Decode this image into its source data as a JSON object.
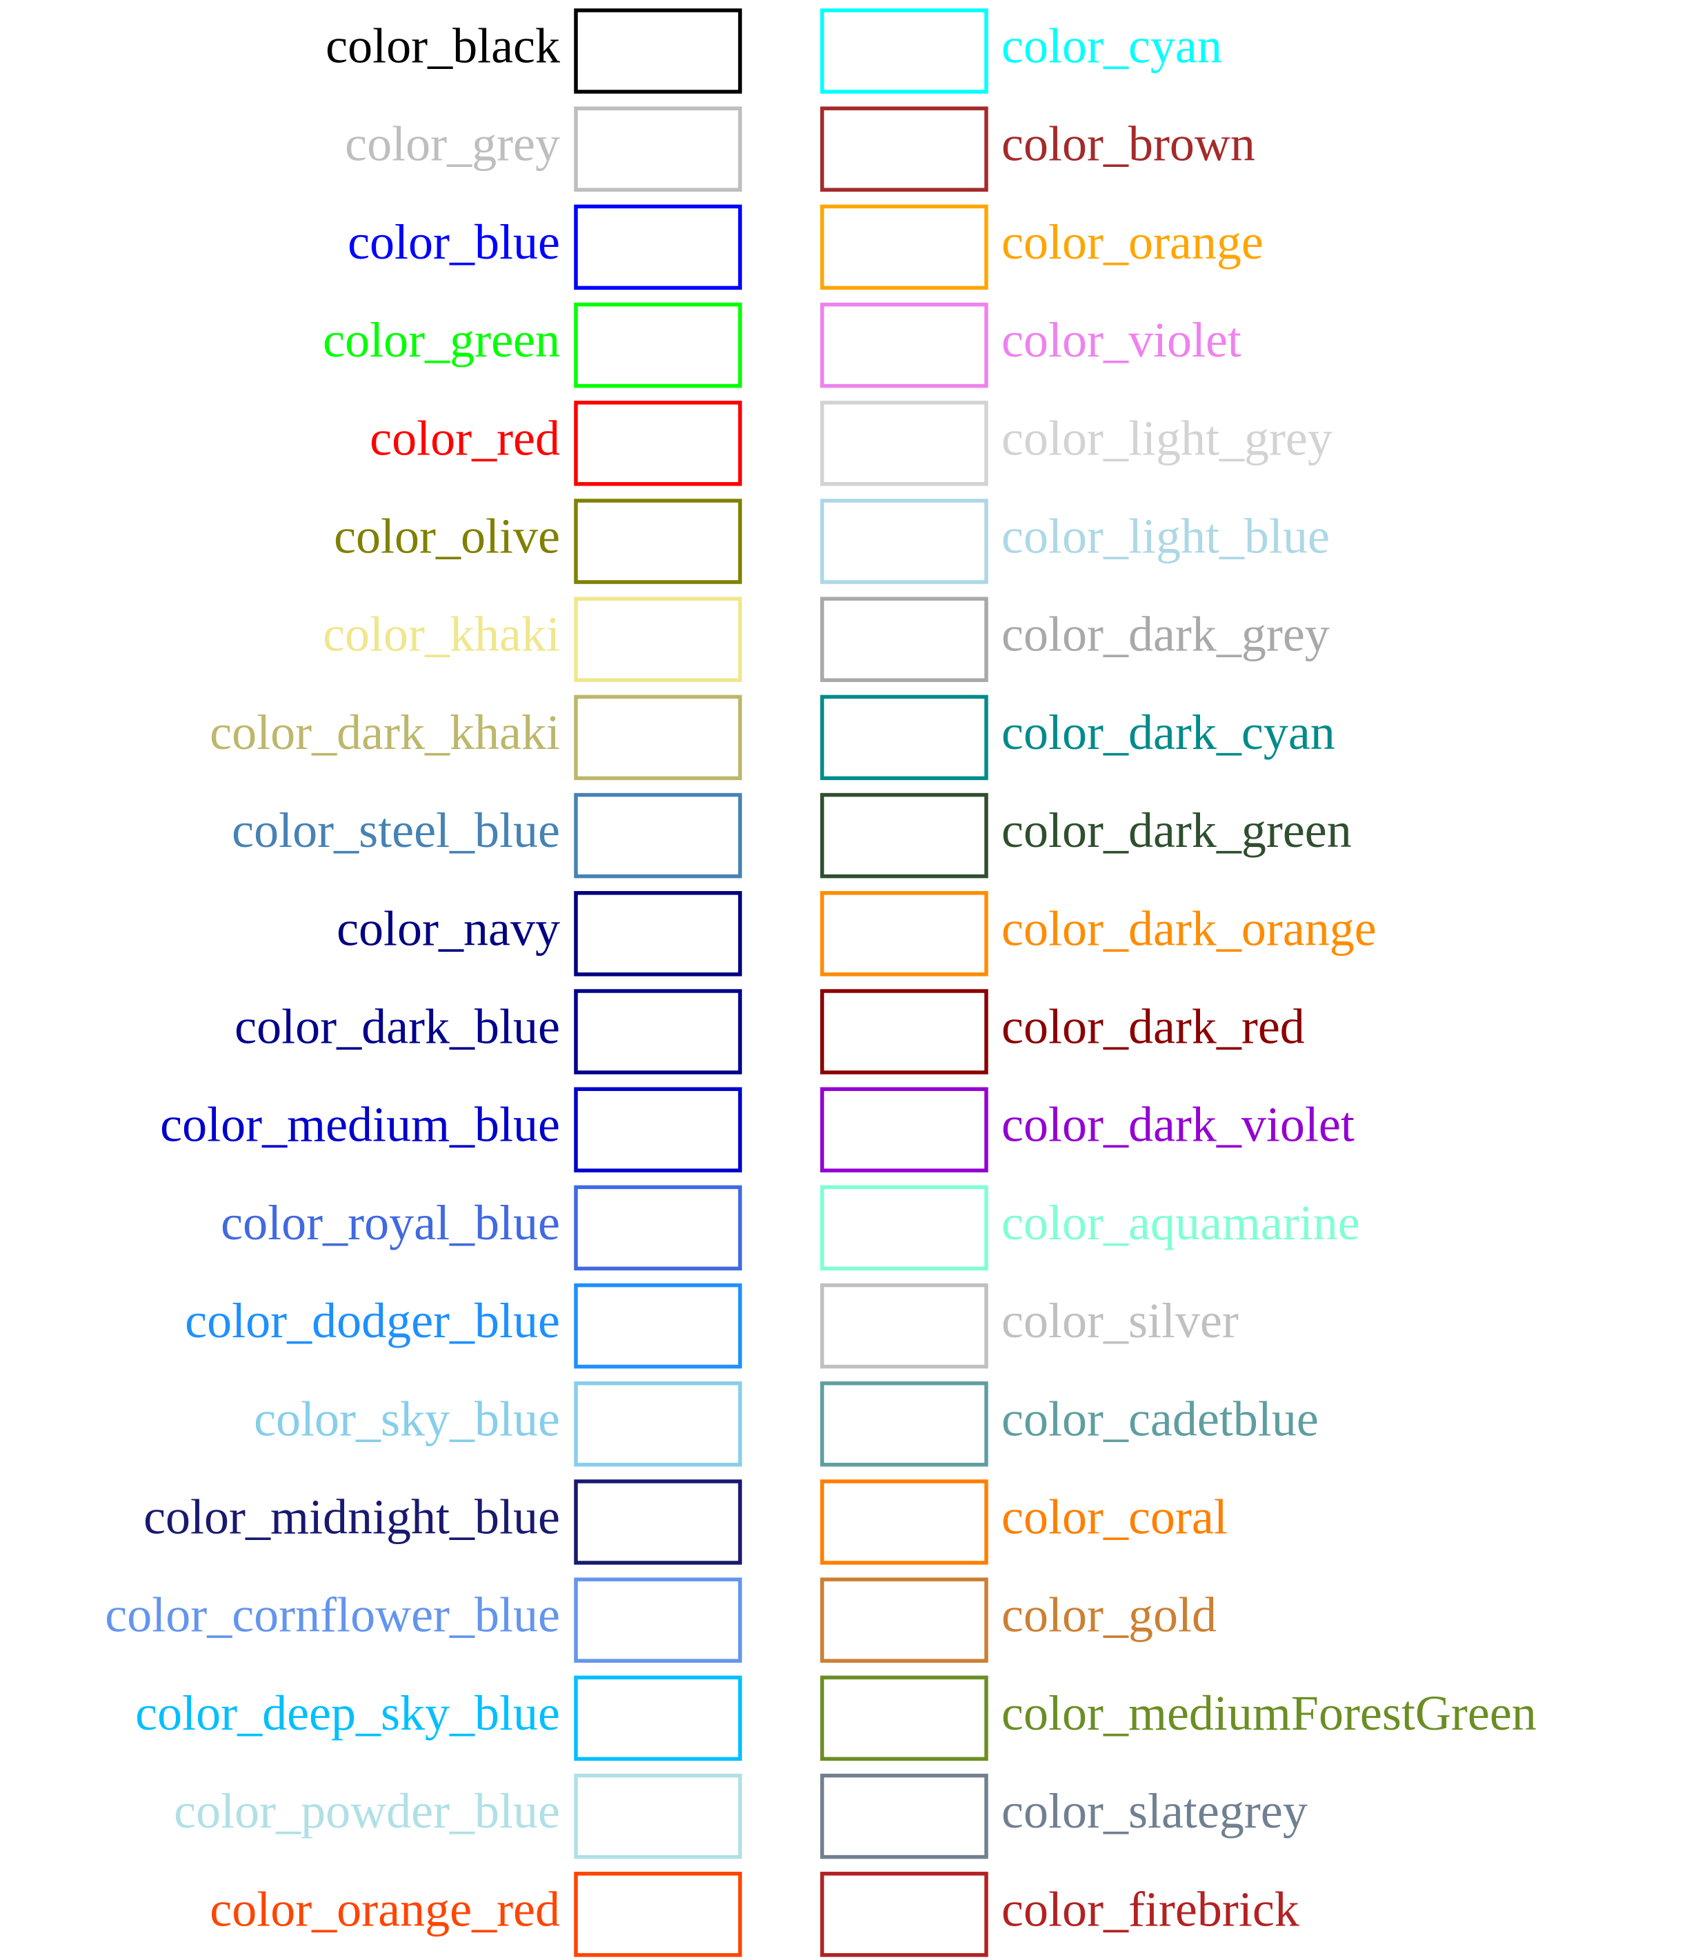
{
  "left": [
    {
      "label": "color_black",
      "color": "#000000"
    },
    {
      "label": "color_grey",
      "color": "#bebebe"
    },
    {
      "label": "color_blue",
      "color": "#0000ff"
    },
    {
      "label": "color_green",
      "color": "#00ff00"
    },
    {
      "label": "color_red",
      "color": "#ff0000"
    },
    {
      "label": "color_olive",
      "color": "#808000"
    },
    {
      "label": "color_khaki",
      "color": "#f0e68c"
    },
    {
      "label": "color_dark_khaki",
      "color": "#bdb76b"
    },
    {
      "label": "color_steel_blue",
      "color": "#4682b4"
    },
    {
      "label": "color_navy",
      "color": "#000080"
    },
    {
      "label": "color_dark_blue",
      "color": "#00008b"
    },
    {
      "label": "color_medium_blue",
      "color": "#0000cd"
    },
    {
      "label": "color_royal_blue",
      "color": "#4169e1"
    },
    {
      "label": "color_dodger_blue",
      "color": "#1e90ff"
    },
    {
      "label": "color_sky_blue",
      "color": "#87ceeb"
    },
    {
      "label": "color_midnight_blue",
      "color": "#191970"
    },
    {
      "label": "color_cornflower_blue",
      "color": "#6495ed"
    },
    {
      "label": "color_deep_sky_blue",
      "color": "#00bfff"
    },
    {
      "label": "color_powder_blue",
      "color": "#b0e0e6"
    },
    {
      "label": "color_orange_red",
      "color": "#ff4500"
    }
  ],
  "right": [
    {
      "label": "color_cyan",
      "color": "#00ffff"
    },
    {
      "label": "color_brown",
      "color": "#a52a2a"
    },
    {
      "label": "color_orange",
      "color": "#ffa500"
    },
    {
      "label": "color_violet",
      "color": "#ee82ee"
    },
    {
      "label": "color_light_grey",
      "color": "#d3d3d3"
    },
    {
      "label": "color_light_blue",
      "color": "#add8e6"
    },
    {
      "label": "color_dark_grey",
      "color": "#a9a9a9"
    },
    {
      "label": "color_dark_cyan",
      "color": "#008b8b"
    },
    {
      "label": "color_dark_green",
      "color": "#2f4f2f"
    },
    {
      "label": "color_dark_orange",
      "color": "#ff8c00"
    },
    {
      "label": "color_dark_red",
      "color": "#8b0000"
    },
    {
      "label": "color_dark_violet",
      "color": "#9400d3"
    },
    {
      "label": "color_aquamarine",
      "color": "#7fffd4"
    },
    {
      "label": "color_silver",
      "color": "#c0c0c0"
    },
    {
      "label": "color_cadetblue",
      "color": "#5f9ea0"
    },
    {
      "label": "color_coral",
      "color": "#ff7f00"
    },
    {
      "label": "color_gold",
      "color": "#cd7f32"
    },
    {
      "label": "color_mediumForestGreen",
      "color": "#6b8e23"
    },
    {
      "label": "color_slategrey",
      "color": "#708090"
    },
    {
      "label": "color_firebrick",
      "color": "#b22222"
    }
  ]
}
